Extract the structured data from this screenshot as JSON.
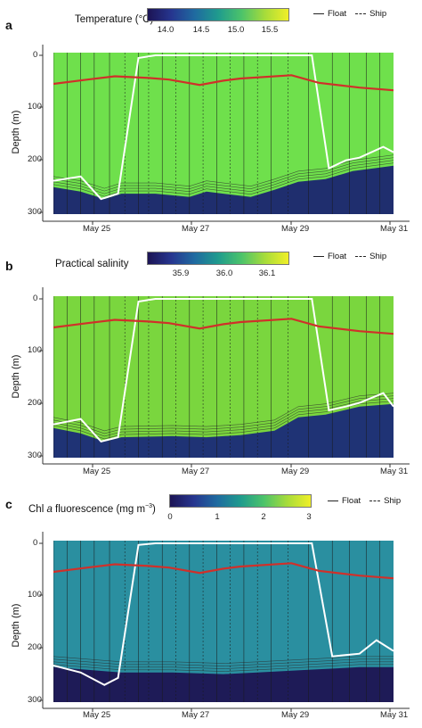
{
  "chart_data": [
    {
      "panel": "a",
      "type": "heatmap",
      "colorbar_title": "Temperature (°C)",
      "colorbar_ticks": [
        "14.0",
        "14.5",
        "15.0",
        "15.5"
      ],
      "colorbar_range": [
        13.7,
        15.75
      ],
      "legend": {
        "float_label": "Float",
        "ship_label": "Ship"
      },
      "ylabel": "Depth (m)",
      "y_ticks": [
        "0",
        "100",
        "200",
        "300"
      ],
      "ylim": [
        300,
        -5
      ],
      "x_ticks": [
        "May 25",
        "May 27",
        "May 29",
        "May 31"
      ],
      "xlim": [
        "2000-05-24T03:00",
        "2000-05-31T06:00"
      ],
      "surface_color": "#6fe04c",
      "deep_color": "#1a2470",
      "deep_boundary": [
        [
          0.0,
          250
        ],
        [
          0.08,
          258
        ],
        [
          0.15,
          272
        ],
        [
          0.2,
          262
        ],
        [
          0.3,
          262
        ],
        [
          0.4,
          268
        ],
        [
          0.45,
          258
        ],
        [
          0.5,
          262
        ],
        [
          0.58,
          268
        ],
        [
          0.65,
          255
        ],
        [
          0.72,
          240
        ],
        [
          0.8,
          235
        ],
        [
          0.88,
          220
        ],
        [
          1.0,
          210
        ]
      ],
      "mixed_layer_depth": [
        [
          0.0,
          58
        ],
        [
          0.1,
          50
        ],
        [
          0.18,
          44
        ],
        [
          0.28,
          47
        ],
        [
          0.34,
          50
        ],
        [
          0.43,
          60
        ],
        [
          0.5,
          52
        ],
        [
          0.55,
          48
        ],
        [
          0.7,
          42
        ],
        [
          0.78,
          56
        ],
        [
          0.9,
          65
        ],
        [
          1.0,
          70
        ]
      ],
      "float_track": [
        [
          0.0,
          238
        ],
        [
          0.08,
          230
        ],
        [
          0.14,
          272
        ],
        [
          0.19,
          262
        ],
        [
          0.25,
          10
        ],
        [
          0.3,
          5
        ],
        [
          0.68,
          5
        ],
        [
          0.76,
          5
        ],
        [
          0.81,
          215
        ],
        [
          0.86,
          200
        ],
        [
          0.9,
          195
        ],
        [
          0.97,
          175
        ],
        [
          1.0,
          185
        ]
      ]
    },
    {
      "panel": "b",
      "type": "heatmap",
      "colorbar_title": "Practical salinity",
      "colorbar_ticks": [
        "35.9",
        "36.0",
        "36.1"
      ],
      "colorbar_range": [
        35.82,
        36.16
      ],
      "legend": {
        "float_label": "Float",
        "ship_label": "Ship"
      },
      "ylabel": "Depth (m)",
      "y_ticks": [
        "0",
        "100",
        "200",
        "300"
      ],
      "ylim": [
        300,
        -5
      ],
      "x_ticks": [
        "May 25",
        "May 27",
        "May 29",
        "May 31"
      ],
      "xlim": [
        "2000-05-24T03:00",
        "2000-05-31T06:00"
      ],
      "surface_color": "#7ad63e",
      "deep_color": "#1a2a78",
      "deep_boundary": [
        [
          0.0,
          245
        ],
        [
          0.08,
          255
        ],
        [
          0.15,
          270
        ],
        [
          0.2,
          262
        ],
        [
          0.35,
          260
        ],
        [
          0.45,
          262
        ],
        [
          0.55,
          258
        ],
        [
          0.65,
          250
        ],
        [
          0.72,
          225
        ],
        [
          0.8,
          220
        ],
        [
          0.9,
          205
        ],
        [
          1.0,
          200
        ]
      ],
      "mixed_layer_depth": [
        [
          0.0,
          58
        ],
        [
          0.1,
          50
        ],
        [
          0.18,
          44
        ],
        [
          0.28,
          47
        ],
        [
          0.34,
          50
        ],
        [
          0.43,
          60
        ],
        [
          0.5,
          52
        ],
        [
          0.55,
          48
        ],
        [
          0.7,
          42
        ],
        [
          0.78,
          56
        ],
        [
          0.9,
          65
        ],
        [
          1.0,
          70
        ]
      ],
      "float_track": [
        [
          0.0,
          238
        ],
        [
          0.08,
          228
        ],
        [
          0.14,
          270
        ],
        [
          0.19,
          262
        ],
        [
          0.25,
          10
        ],
        [
          0.3,
          5
        ],
        [
          0.68,
          5
        ],
        [
          0.76,
          5
        ],
        [
          0.81,
          212
        ],
        [
          0.86,
          205
        ],
        [
          0.9,
          198
        ],
        [
          0.97,
          180
        ],
        [
          1.0,
          205
        ]
      ]
    },
    {
      "panel": "c",
      "type": "heatmap",
      "colorbar_title": "Chl a fluorescence (mg m⁻³)",
      "colorbar_ticks": [
        "0",
        "1",
        "2",
        "3"
      ],
      "colorbar_range": [
        0,
        3
      ],
      "legend": {
        "float_label": "Float",
        "ship_label": "Ship"
      },
      "ylabel": "Depth (m)",
      "y_ticks": [
        "0",
        "100",
        "200",
        "300"
      ],
      "ylim": [
        300,
        -5
      ],
      "x_ticks": [
        "May 25",
        "May 27",
        "May 29",
        "May 31"
      ],
      "xlim": [
        "2000-05-24T03:00",
        "2000-05-31T06:00"
      ],
      "surface_color": "#2a8fa0",
      "deep_color": "#1e1553",
      "deep_boundary": [
        [
          0.0,
          235
        ],
        [
          0.1,
          240
        ],
        [
          0.2,
          245
        ],
        [
          0.35,
          245
        ],
        [
          0.5,
          248
        ],
        [
          0.6,
          245
        ],
        [
          0.75,
          240
        ],
        [
          0.9,
          235
        ],
        [
          1.0,
          235
        ]
      ],
      "mixed_layer_depth": [
        [
          0.0,
          58
        ],
        [
          0.1,
          50
        ],
        [
          0.18,
          44
        ],
        [
          0.28,
          47
        ],
        [
          0.34,
          50
        ],
        [
          0.43,
          60
        ],
        [
          0.5,
          52
        ],
        [
          0.55,
          48
        ],
        [
          0.7,
          42
        ],
        [
          0.78,
          56
        ],
        [
          0.9,
          65
        ],
        [
          1.0,
          70
        ]
      ],
      "float_track": [
        [
          0.0,
          232
        ],
        [
          0.08,
          245
        ],
        [
          0.15,
          268
        ],
        [
          0.19,
          255
        ],
        [
          0.25,
          8
        ],
        [
          0.3,
          5
        ],
        [
          0.68,
          5
        ],
        [
          0.76,
          5
        ],
        [
          0.82,
          215
        ],
        [
          0.9,
          210
        ],
        [
          0.95,
          185
        ],
        [
          1.0,
          205
        ]
      ]
    }
  ],
  "colors": {
    "mixed_layer_line": "#d0302a",
    "float_track": "#ffffff",
    "profile_lines": "#1a1a1a",
    "colormap": [
      "#1c1454",
      "#26358f",
      "#1f6aa0",
      "#1f9b8e",
      "#4cc36a",
      "#a7dc3a",
      "#f0ef28"
    ]
  }
}
